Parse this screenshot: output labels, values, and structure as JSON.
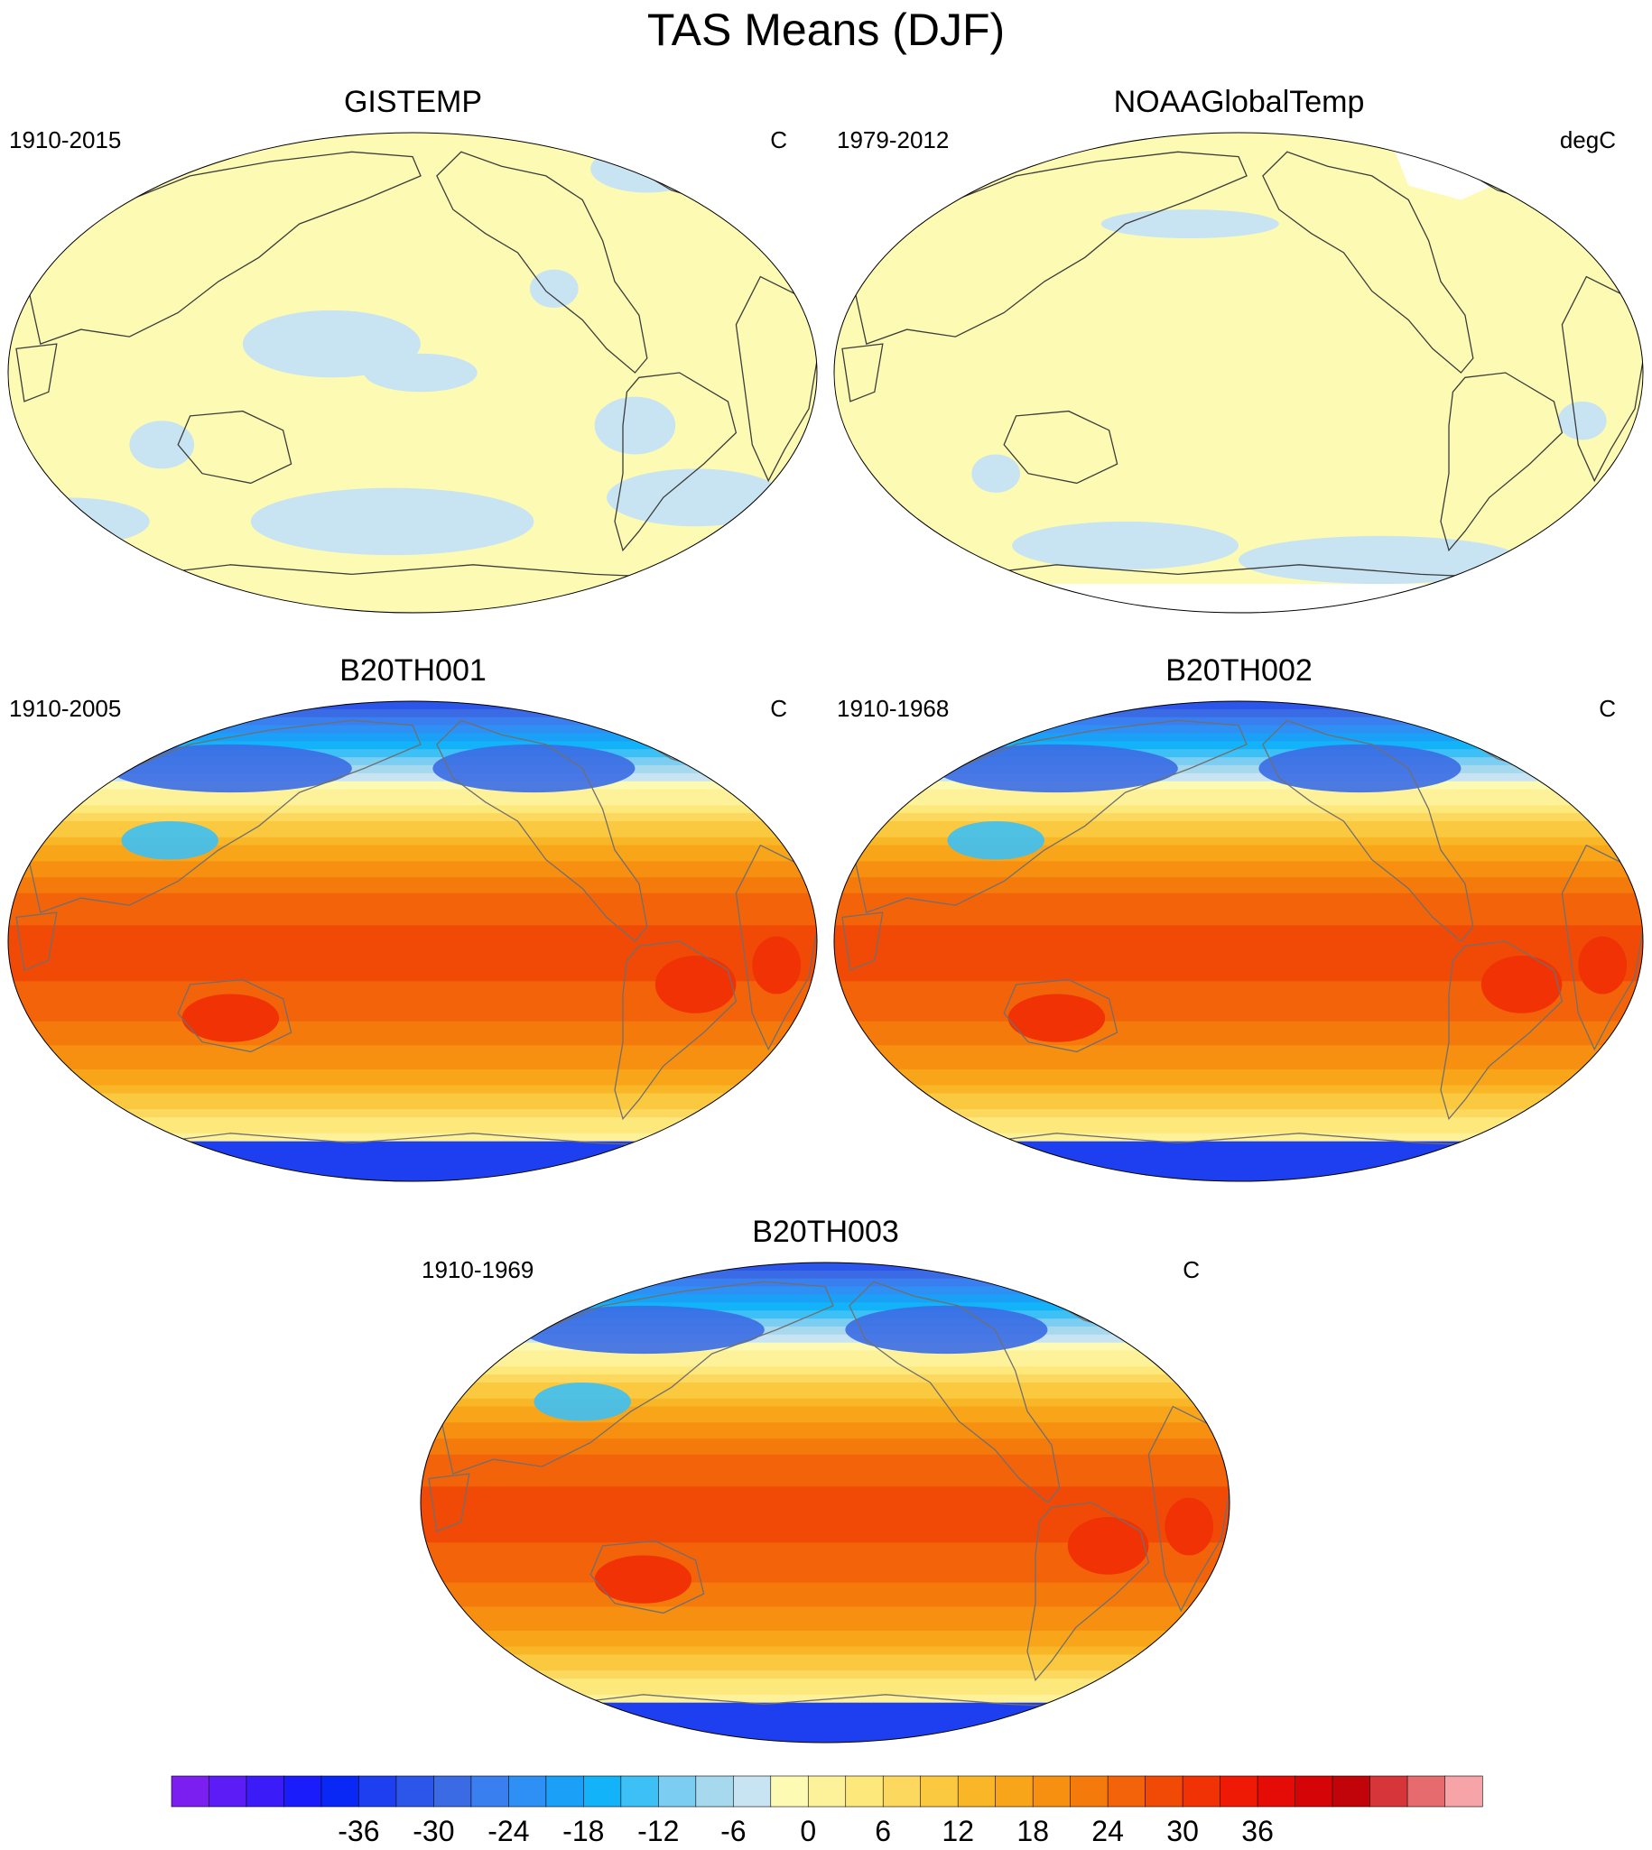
{
  "figure": {
    "title": "TAS Means (DJF)"
  },
  "panels": [
    {
      "id": "gistemp",
      "title": "GISTEMP",
      "period": "1910-2015",
      "units": "C",
      "fill": "flat"
    },
    {
      "id": "noaa",
      "title": "NOAAGlobalTemp",
      "period": "1979-2012",
      "units": "degC",
      "fill": "flat_noaa"
    },
    {
      "id": "b20th001",
      "title": "B20TH001",
      "period": "1910-2005",
      "units": "C",
      "fill": "model"
    },
    {
      "id": "b20th002",
      "title": "B20TH002",
      "period": "1910-1968",
      "units": "C",
      "fill": "model"
    },
    {
      "id": "b20th003",
      "title": "B20TH003",
      "period": "1910-1969",
      "units": "C",
      "fill": "model"
    }
  ],
  "colorbar": {
    "tick_labels": [
      "-36",
      "-30",
      "-24",
      "-18",
      "-12",
      "-6",
      "0",
      "6",
      "12",
      "18",
      "24",
      "30",
      "36"
    ],
    "colors": [
      "#7a1ff0",
      "#5b1cf5",
      "#3b1cf8",
      "#1a1cfb",
      "#0a28f5",
      "#1e3fef",
      "#2c55ea",
      "#3a6be4",
      "#3a7ff0",
      "#2e8ff5",
      "#1aa0f7",
      "#12b3f8",
      "#3cc0f5",
      "#7ccdf2",
      "#a6d8ee",
      "#c8e4f2",
      "#fdfbb3",
      "#fdf29a",
      "#fde87c",
      "#fcd95e",
      "#fbc93f",
      "#f9b728",
      "#f8a51a",
      "#f78f10",
      "#f57a0c",
      "#f36309",
      "#f14a07",
      "#f03205",
      "#ef1a05",
      "#e50b06",
      "#d40407",
      "#c00409",
      "#d6353a",
      "#e56b6f",
      "#f6a4a8"
    ],
    "value_min": -40,
    "value_max": 40,
    "step": 3
  }
}
